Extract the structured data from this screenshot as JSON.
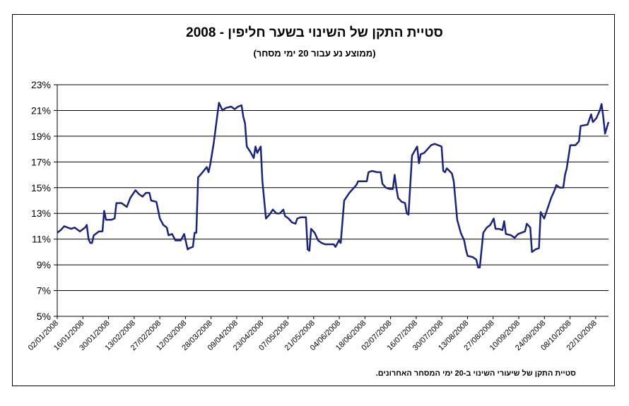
{
  "chart_data": {
    "type": "line",
    "title": "סטיית התקן של השינוי בשער חליפין - 2008",
    "subtitle": "(ממוצע נע עבור 20 ימי מסחר)",
    "footnote": "סטיית התקן של שיעורי השינוי ב-20 ימי המסחר האחרונים.",
    "ylim": [
      5,
      23
    ],
    "y_ticks": [
      "5%",
      "7%",
      "9%",
      "11%",
      "13%",
      "15%",
      "17%",
      "19%",
      "21%",
      "23%"
    ],
    "x_ticks": [
      "02/01/2008",
      "16/01/2008",
      "30/01/2008",
      "13/02/2008",
      "27/02/2008",
      "12/03/2008",
      "28/03/2008",
      "09/04/2008",
      "23/04/2008",
      "07/05/2008",
      "21/05/2008",
      "04/06/2008",
      "18/06/2008",
      "02/07/2008",
      "16/07/2008",
      "30/07/2008",
      "13/08/2008",
      "27/08/2008",
      "10/09/2008",
      "24/09/2008",
      "08/10/2008",
      "22/10/2008"
    ],
    "grid": true,
    "line_color": "#1a237e",
    "series": [
      {
        "values": [
          [
            0,
            11.5
          ],
          [
            2,
            11.7
          ],
          [
            4,
            12.0
          ],
          [
            6,
            11.9
          ],
          [
            8,
            11.8
          ],
          [
            10,
            11.9
          ],
          [
            13,
            11.6
          ],
          [
            16,
            11.9
          ],
          [
            17,
            12.1
          ],
          [
            18,
            11.0
          ],
          [
            19,
            10.7
          ],
          [
            20,
            10.7
          ],
          [
            21,
            11.3
          ],
          [
            24,
            11.6
          ],
          [
            26,
            11.6
          ],
          [
            27,
            13.2
          ],
          [
            28,
            12.5
          ],
          [
            31,
            12.5
          ],
          [
            33,
            12.6
          ],
          [
            34,
            13.8
          ],
          [
            37,
            13.8
          ],
          [
            40,
            13.5
          ],
          [
            42,
            14.2
          ],
          [
            45,
            14.8
          ],
          [
            47,
            14.5
          ],
          [
            49,
            14.3
          ],
          [
            51,
            14.6
          ],
          [
            53,
            14.6
          ],
          [
            54,
            14.0
          ],
          [
            57,
            13.9
          ],
          [
            59,
            12.6
          ],
          [
            61,
            12.1
          ],
          [
            63,
            11.9
          ],
          [
            64,
            11.3
          ],
          [
            66,
            11.4
          ],
          [
            68,
            10.9
          ],
          [
            71,
            10.9
          ],
          [
            73,
            11.4
          ],
          [
            75,
            10.2
          ],
          [
            76,
            10.3
          ],
          [
            78,
            10.4
          ],
          [
            79,
            11.5
          ],
          [
            80,
            11.5
          ],
          [
            81,
            15.8
          ],
          [
            83,
            16.1
          ],
          [
            86,
            16.6
          ],
          [
            87,
            16.2
          ],
          [
            88,
            16.8
          ],
          [
            90,
            18.5
          ],
          [
            93,
            21.6
          ],
          [
            95,
            21.0
          ],
          [
            97,
            21.2
          ],
          [
            100,
            21.3
          ],
          [
            102,
            21.1
          ],
          [
            104,
            21.3
          ],
          [
            106,
            21.4
          ],
          [
            107,
            20.5
          ],
          [
            108,
            20.0
          ],
          [
            109,
            18.2
          ],
          [
            111,
            17.8
          ],
          [
            113,
            17.3
          ],
          [
            114,
            18.2
          ],
          [
            115,
            17.7
          ],
          [
            117,
            18.2
          ],
          [
            118,
            15.5
          ],
          [
            120,
            12.6
          ],
          [
            122,
            12.9
          ],
          [
            124,
            13.3
          ],
          [
            126,
            13.0
          ],
          [
            128,
            13.0
          ],
          [
            130,
            13.3
          ],
          [
            131,
            12.8
          ],
          [
            133,
            12.6
          ],
          [
            135,
            12.3
          ],
          [
            137,
            12.2
          ],
          [
            138,
            12.6
          ],
          [
            140,
            12.7
          ],
          [
            143,
            12.7
          ],
          [
            144,
            10.2
          ],
          [
            145,
            10.1
          ],
          [
            146,
            11.8
          ],
          [
            148,
            11.5
          ],
          [
            150,
            10.9
          ],
          [
            152,
            10.7
          ],
          [
            154,
            10.6
          ],
          [
            157,
            10.6
          ],
          [
            159,
            10.6
          ],
          [
            160,
            10.4
          ],
          [
            162,
            10.9
          ],
          [
            163,
            10.7
          ],
          [
            165,
            14.0
          ],
          [
            168,
            14.6
          ],
          [
            170,
            14.9
          ],
          [
            172,
            15.2
          ],
          [
            173,
            15.5
          ],
          [
            178,
            15.5
          ],
          [
            179,
            16.2
          ],
          [
            181,
            16.3
          ],
          [
            184,
            16.2
          ],
          [
            186,
            16.2
          ],
          [
            187,
            15.3
          ],
          [
            189,
            15.0
          ],
          [
            191,
            14.9
          ],
          [
            193,
            14.9
          ],
          [
            194,
            16.0
          ],
          [
            195,
            15.0
          ],
          [
            196,
            14.2
          ],
          [
            198,
            13.9
          ],
          [
            200,
            13.8
          ],
          [
            201,
            13.0
          ],
          [
            202,
            12.9
          ],
          [
            204,
            17.5
          ],
          [
            207,
            18.2
          ],
          [
            208,
            16.9
          ],
          [
            209,
            17.6
          ],
          [
            211,
            17.7
          ],
          [
            213,
            18.0
          ],
          [
            215,
            18.3
          ],
          [
            217,
            18.4
          ],
          [
            219,
            18.3
          ],
          [
            221,
            18.2
          ],
          [
            222,
            16.3
          ],
          [
            223,
            16.2
          ],
          [
            224,
            16.5
          ],
          [
            227,
            16.1
          ],
          [
            228,
            15.5
          ],
          [
            230,
            12.5
          ],
          [
            232,
            11.5
          ],
          [
            234,
            10.9
          ],
          [
            235,
            10.2
          ],
          [
            236,
            9.7
          ],
          [
            239,
            9.6
          ],
          [
            241,
            9.4
          ],
          [
            242,
            8.8
          ],
          [
            243,
            8.8
          ],
          [
            245,
            11.5
          ],
          [
            247,
            11.9
          ],
          [
            249,
            12.1
          ],
          [
            251,
            12.6
          ],
          [
            252,
            11.8
          ],
          [
            254,
            11.8
          ],
          [
            256,
            11.7
          ],
          [
            257,
            12.4
          ],
          [
            258,
            11.4
          ],
          [
            261,
            11.3
          ],
          [
            263,
            11.1
          ],
          [
            265,
            11.4
          ],
          [
            267,
            11.5
          ],
          [
            269,
            11.6
          ],
          [
            270,
            12.2
          ],
          [
            272,
            11.9
          ],
          [
            273,
            10.0
          ],
          [
            275,
            10.2
          ],
          [
            277,
            10.3
          ],
          [
            278,
            13.1
          ],
          [
            280,
            12.6
          ],
          [
            282,
            13.4
          ],
          [
            284,
            14.2
          ],
          [
            286,
            14.8
          ],
          [
            287,
            15.2
          ],
          [
            289,
            15.0
          ],
          [
            291,
            15.0
          ],
          [
            292,
            16.0
          ],
          [
            293,
            16.5
          ],
          [
            295,
            18.3
          ],
          [
            298,
            18.3
          ],
          [
            300,
            18.6
          ],
          [
            301,
            19.8
          ],
          [
            305,
            19.9
          ],
          [
            307,
            20.7
          ],
          [
            308,
            20.1
          ],
          [
            310,
            20.4
          ],
          [
            312,
            21.0
          ],
          [
            313,
            21.5
          ],
          [
            314,
            20.5
          ],
          [
            315,
            19.2
          ],
          [
            317,
            20.1
          ]
        ]
      }
    ]
  }
}
